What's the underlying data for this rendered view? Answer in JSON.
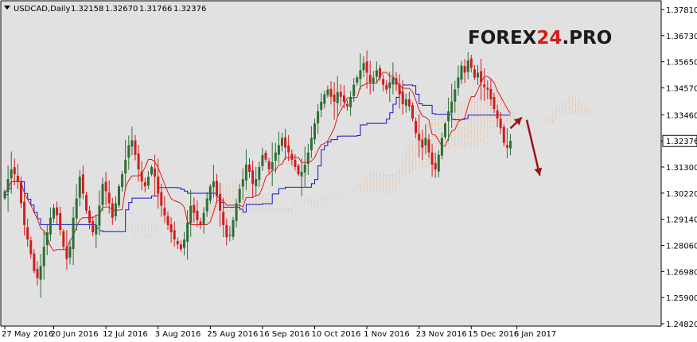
{
  "header": {
    "symbol": "USDCAD,Daily",
    "open": "1.32158",
    "high": "1.32670",
    "low": "1.31766",
    "close": "1.32376"
  },
  "watermark": {
    "main": "FOREX",
    "num": "24",
    "suffix": ".PRO"
  },
  "colors": {
    "background": "#ffffff",
    "plot_bg": "#e1e1e1",
    "bull": "#2c6e35",
    "bear": "#d21d1d",
    "tenkan": "#e01b1b",
    "kijun": "#1414cc",
    "cloud_bull": "#f6a56a",
    "cloud_bear": "#d8b8c6",
    "arrow": "#9b1414",
    "price_tag_bg": "#ffffff"
  },
  "chart_data": {
    "type": "candlestick",
    "ylim": [
      1.2482,
      1.3781
    ],
    "y_ticks": [
      "1.37810",
      "1.36730",
      "1.35650",
      "1.34570",
      "1.33460",
      "1.32376",
      "1.31300",
      "1.30220",
      "1.29140",
      "1.28060",
      "1.26980",
      "1.25900",
      "1.24820"
    ],
    "current_price": "1.32376",
    "x_ticks": [
      "27 May 2016",
      "20 Jun 2016",
      "12 Jul 2016",
      "3 Aug 2016",
      "25 Aug 2016",
      "16 Sep 2016",
      "10 Oct 2016",
      "1 Nov 2016",
      "23 Nov 2016",
      "15 Dec 2016",
      "6 Jan 2017"
    ],
    "tick_slots": [
      0,
      15,
      31,
      47,
      63,
      79,
      95,
      111,
      127,
      143,
      157
    ],
    "close": [
      1.303,
      1.308,
      1.312,
      1.31,
      1.307,
      1.298,
      1.289,
      1.283,
      1.277,
      1.27,
      1.267,
      1.272,
      1.28,
      1.286,
      1.292,
      1.296,
      1.293,
      1.287,
      1.28,
      1.275,
      1.28,
      1.292,
      1.3,
      1.309,
      1.302,
      1.295,
      1.29,
      1.286,
      1.289,
      1.297,
      1.306,
      1.303,
      1.298,
      1.292,
      1.298,
      1.305,
      1.31,
      1.316,
      1.322,
      1.324,
      1.318,
      1.312,
      1.307,
      1.305,
      1.309,
      1.313,
      1.309,
      1.302,
      1.297,
      1.293,
      1.289,
      1.286,
      1.283,
      1.281,
      1.279,
      1.283,
      1.29,
      1.297,
      1.294,
      1.291,
      1.289,
      1.294,
      1.3,
      1.305,
      1.307,
      1.301,
      1.295,
      1.289,
      1.284,
      1.285,
      1.291,
      1.298,
      1.304,
      1.308,
      1.314,
      1.311,
      1.306,
      1.308,
      1.313,
      1.318,
      1.316,
      1.312,
      1.315,
      1.319,
      1.322,
      1.325,
      1.321,
      1.319,
      1.316,
      1.313,
      1.31,
      1.311,
      1.314,
      1.319,
      1.325,
      1.331,
      1.336,
      1.34,
      1.343,
      1.345,
      1.342,
      1.34,
      1.344,
      1.342,
      1.34,
      1.338,
      1.342,
      1.347,
      1.35,
      1.353,
      1.356,
      1.352,
      1.348,
      1.35,
      1.353,
      1.35,
      1.347,
      1.345,
      1.348,
      1.35,
      1.347,
      1.343,
      1.339,
      1.341,
      1.338,
      1.333,
      1.327,
      1.324,
      1.321,
      1.325,
      1.319,
      1.314,
      1.312,
      1.318,
      1.325,
      1.331,
      1.336,
      1.34,
      1.345,
      1.35,
      1.355,
      1.352,
      1.357,
      1.354,
      1.35,
      1.352,
      1.348,
      1.346,
      1.345,
      1.341,
      1.337,
      1.333,
      1.329,
      1.323,
      1.321,
      1.32376
    ],
    "annotations": [
      {
        "type": "arrow",
        "from": [
          155,
          1.329
        ],
        "to": [
          158.5,
          1.3335
        ]
      },
      {
        "type": "arrow",
        "from": [
          160,
          1.3325
        ],
        "to": [
          164,
          1.3095
        ]
      }
    ]
  }
}
